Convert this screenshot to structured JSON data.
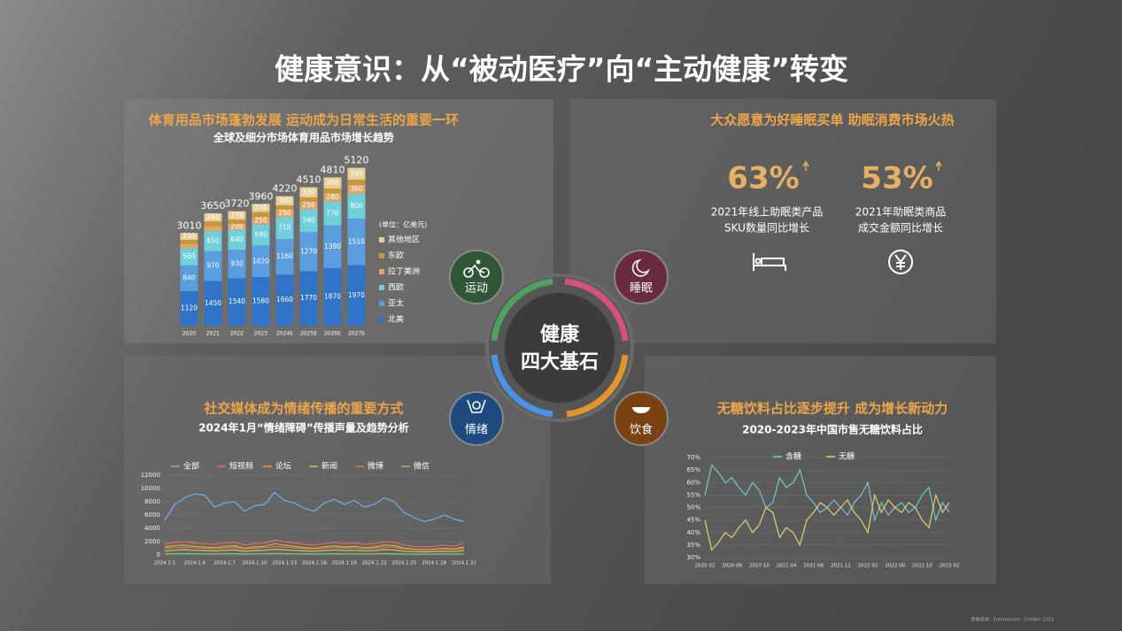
{
  "title": "健康意识：从“被动医疗”向“主动健康”转变",
  "center": [
    "健康",
    "四大基石"
  ],
  "pillars": [
    "运动",
    "睡眠",
    "情绪",
    "饮食"
  ],
  "sleep": {
    "heading": "大众愿意为好睡眠买单 助眠消费市场火热",
    "stats": [
      {
        "value": "63%",
        "label": [
          "2021年线上助眠类产品",
          "SKU数量同比增长"
        ]
      },
      {
        "value": "53%",
        "label": [
          "2021年助眠类商品",
          "成交金额同比增长"
        ]
      }
    ]
  },
  "footnote": "数据来源：Euromonitor, October 2023",
  "chart_data": [
    {
      "type": "bar",
      "stacked": true,
      "heading": "体育用品市场蓬勃发展 运动成为日常生活的重要一环",
      "title": "全球及细分市场体育用品市场增长趋势",
      "unit_note": "(单位：亿美元)",
      "categories": [
        "2020",
        "2021",
        "2022",
        "2023",
        "2024E",
        "2025E",
        "2026E",
        "2027E"
      ],
      "totals": [
        3010,
        3650,
        3720,
        3960,
        4220,
        4510,
        4810,
        5120
      ],
      "series": [
        {
          "name": "北美",
          "color": "#2f74c8",
          "values": [
            1120,
            1450,
            1540,
            1580,
            1660,
            1770,
            1870,
            1970
          ]
        },
        {
          "name": "亚太",
          "color": "#5b9ee0",
          "values": [
            840,
            970,
            930,
            1020,
            1160,
            1270,
            1390,
            1510
          ]
        },
        {
          "name": "西欧",
          "color": "#6fd0dc",
          "values": [
            560,
            650,
            640,
            690,
            710,
            740,
            770,
            800
          ]
        },
        {
          "name": "拉丁美洲",
          "color": "#e0a868",
          "values": [
            130,
            170,
            200,
            250,
            250,
            250,
            280,
            300
          ]
        },
        {
          "name": "东欧",
          "color": "#c9963c",
          "values": [
            140,
            150,
            140,
            150,
            130,
            140,
            150,
            160
          ]
        },
        {
          "name": "其他地区",
          "color": "#e6cf98",
          "values": [
            220,
            260,
            270,
            270,
            300,
            330,
            360,
            390
          ]
        }
      ]
    },
    {
      "type": "line",
      "heading": "社交媒体成为情绪传播的重要方式",
      "title": "2024年1月“情绪障碍”传播声量及趋势分析",
      "categories": [
        "2024.1.1",
        null,
        null,
        "2024.1.4",
        null,
        null,
        "2024.1.7",
        null,
        null,
        "2024.1.10",
        null,
        null,
        "2024.1.13",
        null,
        null,
        "2024.1.16",
        null,
        null,
        "2024.1.19",
        null,
        null,
        "2024.1.22",
        null,
        null,
        "2024.1.25",
        null,
        null,
        "2024.1.28",
        null,
        null,
        "2024.1.31"
      ],
      "ylim": [
        0,
        12000
      ],
      "yticks": [
        0,
        2000,
        4000,
        6000,
        8000,
        10000,
        12000
      ],
      "grid": true,
      "series": [
        {
          "name": "全部",
          "color": "#6fb0ee",
          "values": [
            5200,
            7600,
            8600,
            9200,
            9000,
            7200,
            7800,
            8000,
            6600,
            7400,
            7600,
            9400,
            8200,
            7800,
            7000,
            6600,
            7800,
            8400,
            7600,
            8200,
            7200,
            7600,
            8600,
            8000,
            6400,
            5600,
            5000,
            5400,
            6000,
            5400,
            5000
          ]
        },
        {
          "name": "短视频",
          "color": "#e0705c",
          "values": [
            1600,
            1900,
            2000,
            1800,
            1700,
            1600,
            1800,
            1900,
            1500,
            1700,
            1800,
            2200,
            2000,
            1800,
            1600,
            1500,
            1700,
            1900,
            1700,
            1800,
            1600,
            1700,
            2000,
            1900,
            1500,
            1300,
            1200,
            1300,
            1500,
            1300,
            1800
          ]
        },
        {
          "name": "论坛",
          "color": "#eaa23c",
          "values": [
            1200,
            1400,
            1500,
            1300,
            1200,
            1100,
            1300,
            1400,
            1000,
            1200,
            1300,
            1700,
            1500,
            1300,
            1100,
            1000,
            1200,
            1400,
            1200,
            1300,
            1100,
            1200,
            1500,
            1400,
            1000,
            900,
            800,
            900,
            1000,
            900,
            1200
          ]
        },
        {
          "name": "新闻",
          "color": "#d6c447",
          "values": [
            600,
            700,
            800,
            700,
            650,
            600,
            700,
            750,
            550,
            650,
            700,
            850,
            750,
            700,
            600,
            550,
            650,
            750,
            650,
            700,
            600,
            650,
            800,
            750,
            550,
            500,
            450,
            500,
            550,
            500,
            650
          ]
        },
        {
          "name": "微博",
          "color": "#c4855a",
          "values": [
            1000,
            1100,
            1200,
            1100,
            1000,
            950,
            1050,
            1150,
            900,
            1000,
            1100,
            1300,
            1200,
            1100,
            950,
            900,
            1000,
            1150,
            1000,
            1100,
            950,
            1000,
            1200,
            1150,
            900,
            800,
            750,
            800,
            900,
            800,
            1000
          ]
        },
        {
          "name": "微信",
          "color": "#82c482",
          "values": [
            150,
            180,
            200,
            180,
            160,
            150,
            170,
            190,
            140,
            160,
            170,
            210,
            190,
            170,
            150,
            140,
            160,
            190,
            160,
            170,
            150,
            160,
            200,
            190,
            140,
            120,
            110,
            120,
            140,
            120,
            160
          ]
        }
      ]
    },
    {
      "type": "line",
      "heading": "无糖饮料占比逐步提升 成为增长新动力",
      "title": "2020-2023年中国市售无糖饮料占比",
      "categories": [
        "2020 02",
        null,
        null,
        null,
        "2020 06",
        null,
        null,
        null,
        "2020 10",
        null,
        null,
        null,
        "2021 04",
        null,
        null,
        null,
        "2021 08",
        null,
        null,
        null,
        "2021 12",
        null,
        null,
        null,
        "2022 02",
        null,
        null,
        null,
        "2022 06",
        null,
        null,
        null,
        "2022 10",
        null,
        null,
        null,
        "2023 02"
      ],
      "ylim": [
        30,
        70
      ],
      "yticks": [
        {
          "value": 30,
          "label": "30%"
        },
        {
          "value": 35,
          "label": "35%"
        },
        {
          "value": 40,
          "label": "40%"
        },
        {
          "value": 45,
          "label": "45%"
        },
        {
          "value": 50,
          "label": "50%"
        },
        {
          "value": 55,
          "label": "55%"
        },
        {
          "value": 60,
          "label": "60%"
        },
        {
          "value": 65,
          "label": "65%"
        },
        {
          "value": 70,
          "label": "70%"
        }
      ],
      "grid": true,
      "series": [
        {
          "name": "含糖",
          "color": "#72c8cc",
          "values": [
            55,
            67,
            64,
            60,
            62,
            58,
            55,
            60,
            57,
            50,
            52,
            62,
            58,
            60,
            65,
            55,
            52,
            48,
            50,
            53,
            50,
            47,
            52,
            55,
            60,
            45,
            52,
            47,
            50,
            52,
            48,
            50,
            55,
            58,
            45,
            52,
            48
          ]
        },
        {
          "name": "无糖",
          "color": "#e2d06c",
          "values": [
            45,
            33,
            36,
            40,
            38,
            42,
            45,
            40,
            43,
            50,
            48,
            38,
            42,
            40,
            35,
            45,
            48,
            52,
            50,
            47,
            50,
            53,
            48,
            45,
            40,
            55,
            48,
            53,
            50,
            48,
            52,
            50,
            45,
            42,
            55,
            48,
            52
          ]
        }
      ]
    }
  ]
}
